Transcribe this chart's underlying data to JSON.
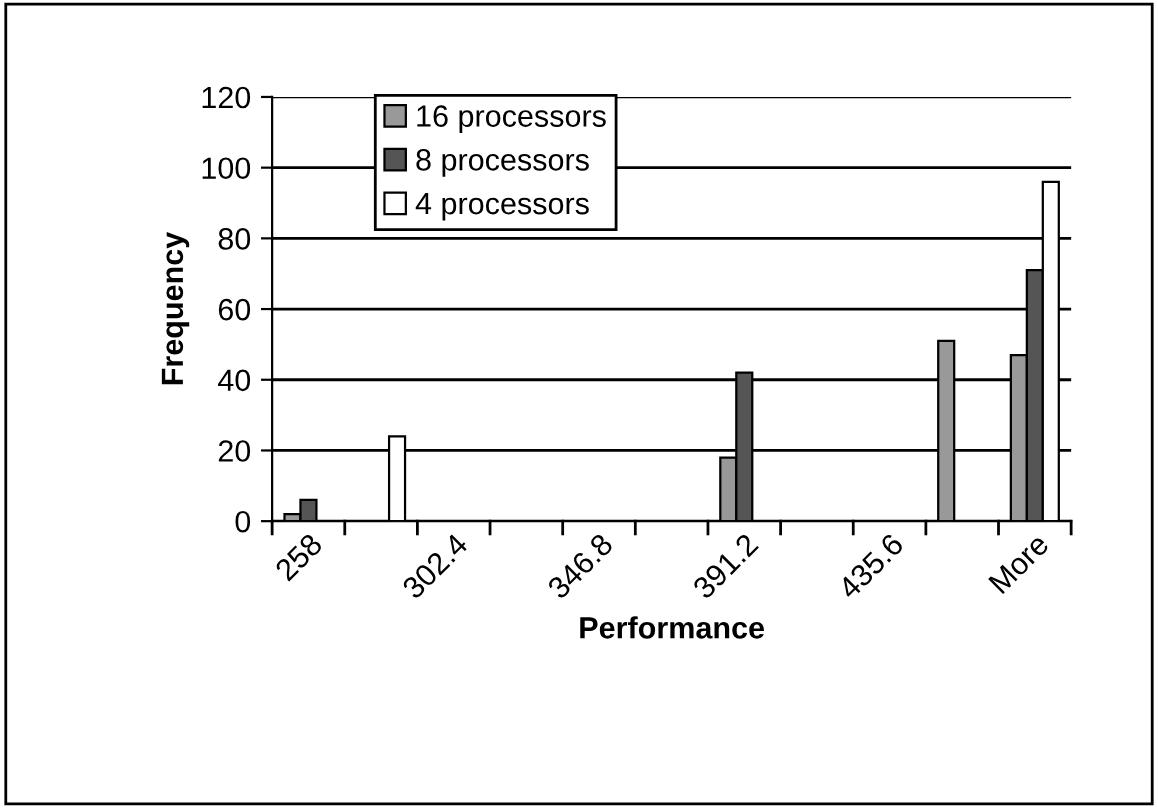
{
  "chart_data": {
    "type": "bar",
    "xlabel": "Performance",
    "ylabel": "Frequency",
    "categories": [
      "258",
      null,
      "302.4",
      null,
      "346.8",
      null,
      "391.2",
      null,
      "435.6",
      null,
      "More"
    ],
    "series": [
      {
        "name": "16 processors",
        "color": "#999999",
        "values": [
          2,
          0,
          0,
          0,
          0,
          0,
          18,
          0,
          0,
          51,
          47
        ]
      },
      {
        "name": "8 processors",
        "color": "#555555",
        "values": [
          6,
          0,
          0,
          0,
          0,
          0,
          42,
          0,
          0,
          0,
          71
        ]
      },
      {
        "name": "4 processors",
        "color": "#ffffff",
        "values": [
          0,
          24,
          0,
          0,
          0,
          0,
          0,
          0,
          0,
          0,
          96
        ]
      }
    ],
    "ylim": [
      0,
      120
    ],
    "yticks": [
      0,
      20,
      40,
      60,
      80,
      100,
      120
    ],
    "grid": "y",
    "legend": "top left"
  }
}
